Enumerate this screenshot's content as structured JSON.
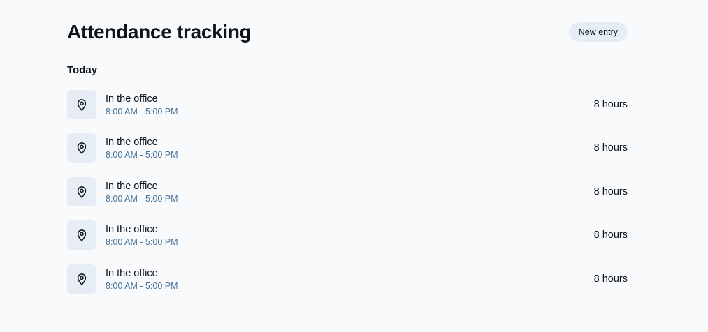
{
  "header": {
    "title": "Attendance tracking",
    "new_entry_label": "New entry"
  },
  "section": {
    "heading": "Today"
  },
  "entries": [
    {
      "title": "In the office",
      "time": "8:00 AM - 5:00 PM",
      "duration": "8 hours",
      "icon": "map-pin-icon"
    },
    {
      "title": "In the office",
      "time": "8:00 AM - 5:00 PM",
      "duration": "8 hours",
      "icon": "map-pin-icon"
    },
    {
      "title": "In the office",
      "time": "8:00 AM - 5:00 PM",
      "duration": "8 hours",
      "icon": "map-pin-icon"
    },
    {
      "title": "In the office",
      "time": "8:00 AM - 5:00 PM",
      "duration": "8 hours",
      "icon": "map-pin-icon"
    },
    {
      "title": "In the office",
      "time": "8:00 AM - 5:00 PM",
      "duration": "8 hours",
      "icon": "map-pin-icon"
    }
  ],
  "colors": {
    "background": "#f8fafc",
    "text_primary": "#0d141c",
    "text_secondary": "#49739c",
    "surface": "#e7edf4"
  }
}
